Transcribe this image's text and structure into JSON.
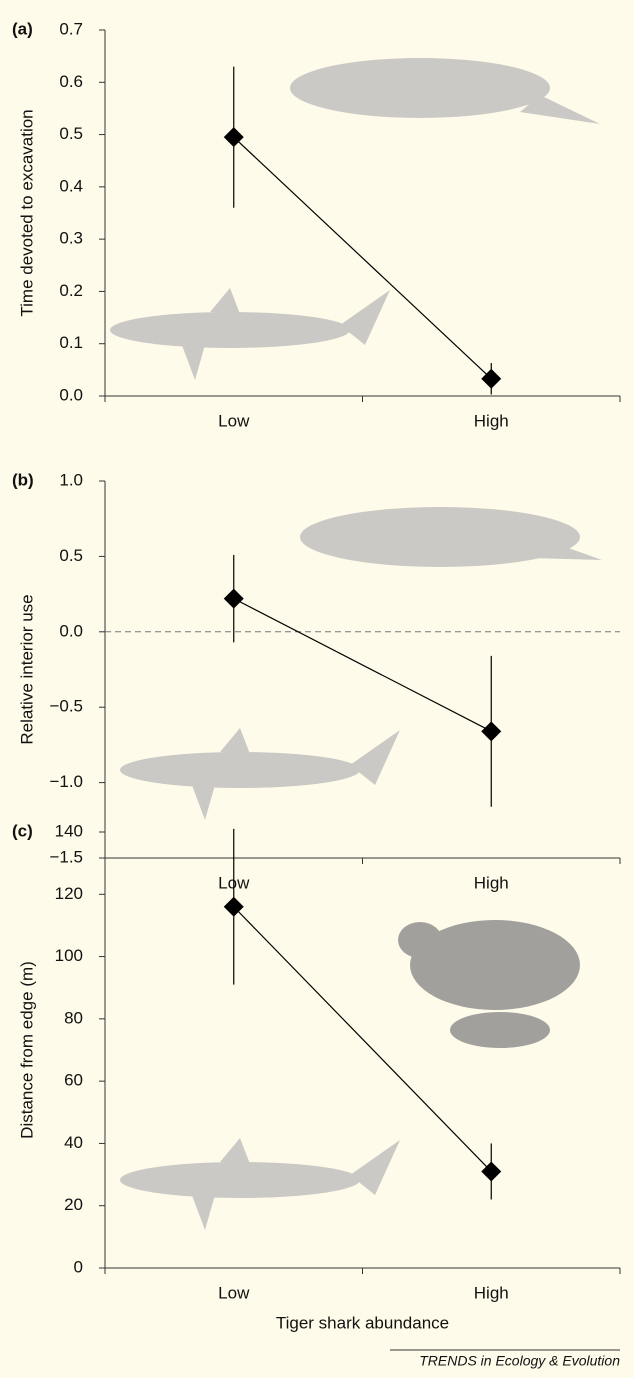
{
  "chart_data": [
    {
      "type": "errorbar",
      "label": "(a)",
      "y_label": "Time devoted to excavation",
      "categories": [
        "Low",
        "High"
      ],
      "values": [
        0.495,
        0.033
      ],
      "errors": [
        0.135,
        0.03
      ],
      "ylim": [
        0,
        0.7
      ],
      "yticks": [
        {
          "value": 0,
          "label": "0.0"
        },
        0.1,
        0.2,
        0.3,
        0.4,
        0.5,
        0.6,
        0.7
      ],
      "color": "#000000"
    },
    {
      "type": "errorbar",
      "label": "(b)",
      "y_label": "Relative interior use",
      "categories": [
        "Low",
        "High"
      ],
      "values": [
        0.22,
        -0.66
      ],
      "errors": [
        0.29,
        0.5
      ],
      "ylim": [
        -1.5,
        1.0
      ],
      "yticks": [
        {
          "value": -1.5,
          "label": "−1.5"
        },
        {
          "value": -1.0,
          "label": "−1.0"
        },
        {
          "value": -0.5,
          "label": "−0.5"
        },
        {
          "value": 0,
          "label": "0.0"
        },
        0.5,
        {
          "value": 1.0,
          "label": "1.0"
        }
      ],
      "hline": 0,
      "color": "#000000"
    },
    {
      "type": "errorbar",
      "label": "(c)",
      "y_label": "Distance from edge (m)",
      "x_label": "Tiger shark abundance",
      "categories": [
        "Low",
        "High"
      ],
      "values": [
        116,
        31
      ],
      "errors": [
        25,
        9
      ],
      "ylim": [
        0,
        140
      ],
      "yticks": [
        0,
        20,
        40,
        60,
        80,
        100,
        120,
        140
      ],
      "color": "#000000"
    }
  ],
  "footer": "TRENDS in Ecology & Evolution"
}
